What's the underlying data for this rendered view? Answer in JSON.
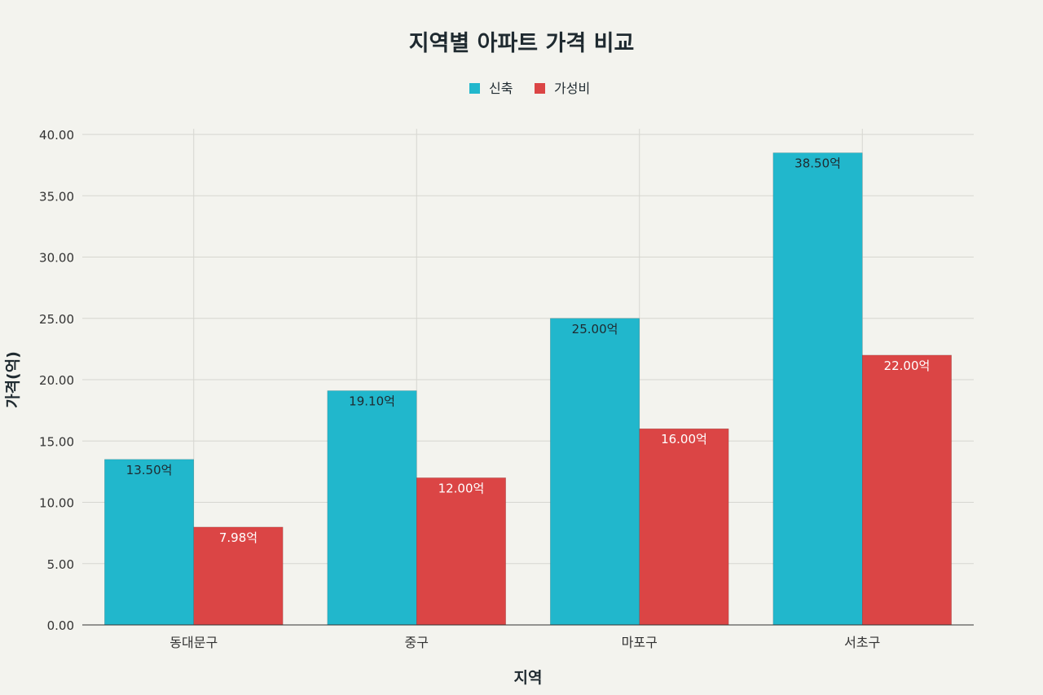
{
  "chart_data": {
    "type": "bar",
    "title": "지역별 아파트 가격 비교",
    "xlabel": "지역",
    "ylabel": "가격(억)",
    "categories": [
      "동대문구",
      "중구",
      "마포구",
      "서초구"
    ],
    "series": [
      {
        "name": "신축",
        "color": "#21b7cc",
        "values": [
          13.5,
          19.1,
          25.0,
          38.5
        ],
        "labels": [
          "13.50억",
          "19.10억",
          "25.00억",
          "38.50억"
        ]
      },
      {
        "name": "가성비",
        "color": "#db4545",
        "values": [
          7.98,
          12.0,
          16.0,
          22.0
        ],
        "labels": [
          "7.98억",
          "12.00억",
          "16.00억",
          "22.00억"
        ]
      }
    ],
    "ylim": [
      0,
      40
    ],
    "yticks": [
      "0.00",
      "5.00",
      "10.00",
      "15.00",
      "20.00",
      "25.00",
      "30.00",
      "35.00",
      "40.00"
    ],
    "legend_position": "top-center",
    "grid": true
  }
}
